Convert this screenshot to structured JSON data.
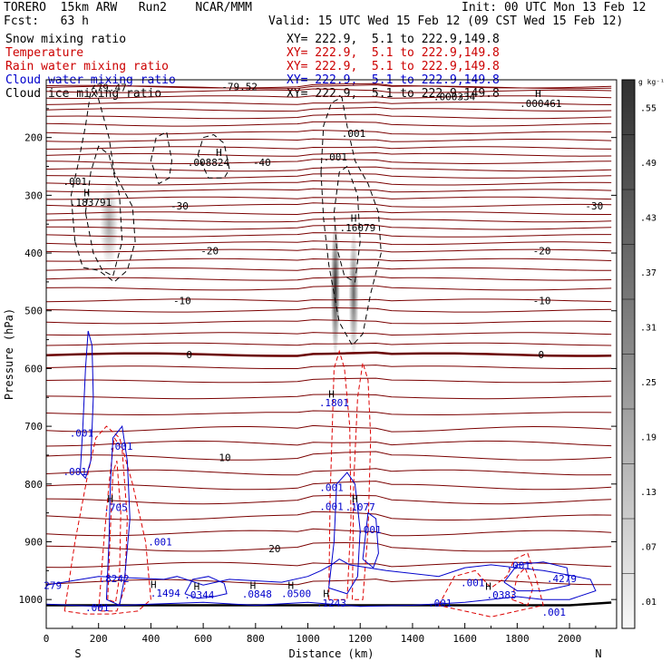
{
  "header": {
    "model": "TORERO  15km ARW   Run2    NCAR/MMM",
    "init": "Init: 00 UTC Mon 13 Feb 12",
    "fcst": "Fcst:   63 h",
    "valid": "Valid: 15 UTC Wed 15 Feb 12 (09 CST Wed 15 Feb 12)"
  },
  "legend": {
    "items": [
      {
        "label": "Snow mixing ratio",
        "xy": "XY= 222.9,  5.1 to 222.9,149.8",
        "color": "#000000"
      },
      {
        "label": "Temperature",
        "xy": "XY= 222.9,  5.1 to 222.9,149.8",
        "color": "#cc0000"
      },
      {
        "label": "Rain water mixing ratio",
        "xy": "XY= 222.9,  5.1 to 222.9,149.8",
        "color": "#cc0000"
      },
      {
        "label": "Cloud water mixing ratio",
        "xy": "XY= 222.9,  5.1 to 222.9,149.8",
        "color": "#0000cc"
      },
      {
        "label": "Cloud ice mixing ratio",
        "xy": "XY= 222.9,  5.1 to 222.9,149.8",
        "color": "#000000"
      }
    ]
  },
  "chart_data": {
    "type": "cross-section",
    "xlabel": "Distance (km)",
    "ylabel": "Pressure (hPa)",
    "xlim": [
      0,
      2180
    ],
    "ylim": [
      1050,
      100
    ],
    "x_ticks": [
      0,
      200,
      400,
      600,
      800,
      1000,
      1200,
      1400,
      1600,
      1800,
      2000
    ],
    "y_ticks": [
      200,
      300,
      400,
      500,
      600,
      700,
      800,
      900,
      1000
    ],
    "x_end_labels": {
      "left": "S",
      "right": "N"
    },
    "colorbar": {
      "unit": "g kg⁻¹",
      "labels": [
        ".55",
        ".49",
        ".43",
        ".37",
        ".31",
        ".25",
        ".19",
        ".13",
        ".07",
        ".01"
      ]
    },
    "temperature_contours": [
      {
        "value": -79.47,
        "label": "-79.47",
        "p": 113,
        "label_x": 170
      },
      {
        "value": -79.52,
        "label": "-79.52",
        "p": 112,
        "label_x": 670
      },
      {
        "value": -40,
        "label": "-40",
        "p": 243,
        "label_x": 790
      },
      {
        "value": -30,
        "label": "-30",
        "p": 318,
        "label_x": 475,
        "label_x2": 2060
      },
      {
        "value": -20,
        "label": "-20",
        "p": 396,
        "label_x": 590,
        "label_x2": 1860
      },
      {
        "value": -10,
        "label": "-10",
        "p": 482,
        "label_x": 485,
        "label_x2": 1860
      },
      {
        "value": 0,
        "label": "0",
        "p": 576,
        "label_x": 535,
        "label_x2": 1880
      },
      {
        "value": 10,
        "label": "10",
        "p": 754,
        "label_x": 660
      },
      {
        "value": 20,
        "label": "20",
        "p": 912,
        "label_x": 850
      }
    ],
    "annotations": [
      {
        "text": ".000334",
        "x": 1560,
        "p": 135
      },
      {
        "text": ".000461",
        "x": 1890,
        "p": 147
      },
      {
        "text": ".001",
        "x": 110,
        "p": 282
      },
      {
        "text": ".183791",
        "x": 170,
        "p": 318
      },
      {
        "text": ".008824",
        "x": 620,
        "p": 249
      },
      {
        "text": ".001",
        "x": 1175,
        "p": 199
      },
      {
        "text": ".001",
        "x": 1105,
        "p": 240
      },
      {
        "text": ".16079",
        "x": 1190,
        "p": 362
      },
      {
        "text": ".1801",
        "x": 1100,
        "p": 665
      },
      {
        "text": ".001",
        "x": 1090,
        "p": 812
      },
      {
        "text": ".001",
        "x": 1090,
        "p": 845
      },
      {
        "text": ".1077",
        "x": 1200,
        "p": 846
      },
      {
        "text": ".001",
        "x": 1235,
        "p": 885
      },
      {
        "text": ".001",
        "x": 135,
        "p": 718
      },
      {
        "text": ".001",
        "x": 285,
        "p": 741
      },
      {
        "text": ".001",
        "x": 110,
        "p": 785
      },
      {
        "text": ".705",
        "x": 265,
        "p": 847
      },
      {
        "text": ".001",
        "x": 435,
        "p": 906
      },
      {
        "text": ".8242",
        "x": 260,
        "p": 970
      },
      {
        "text": ".001",
        "x": 195,
        "p": 1020
      },
      {
        "text": ".1494",
        "x": 455,
        "p": 995
      },
      {
        "text": ".0344",
        "x": 585,
        "p": 998
      },
      {
        "text": ".0848",
        "x": 805,
        "p": 997
      },
      {
        "text": ".0500",
        "x": 955,
        "p": 996
      },
      {
        "text": ".1243",
        "x": 1090,
        "p": 1012
      },
      {
        "text": ".001",
        "x": 1505,
        "p": 1012
      },
      {
        "text": ".001",
        "x": 1630,
        "p": 977
      },
      {
        "text": ".0383",
        "x": 1740,
        "p": 998
      },
      {
        "text": ".001",
        "x": 1805,
        "p": 947
      },
      {
        "text": ".4279",
        "x": 1970,
        "p": 970
      },
      {
        "text": ".001",
        "x": 1940,
        "p": 1028
      },
      {
        "text": "279",
        "x": 25,
        "p": 982
      }
    ],
    "h_markers": [
      {
        "text": "H",
        "x": 1880,
        "p": 130
      },
      {
        "text": "H",
        "x": 660,
        "p": 232
      },
      {
        "text": "H",
        "x": 155,
        "p": 302
      },
      {
        "text": "H",
        "x": 1175,
        "p": 346
      },
      {
        "text": "H",
        "x": 1090,
        "p": 650
      },
      {
        "text": "H",
        "x": 245,
        "p": 832
      },
      {
        "text": "H",
        "x": 1180,
        "p": 832
      },
      {
        "text": "H",
        "x": 410,
        "p": 980
      },
      {
        "text": "H",
        "x": 575,
        "p": 983
      },
      {
        "text": "H",
        "x": 790,
        "p": 982
      },
      {
        "text": "H",
        "x": 935,
        "p": 982
      },
      {
        "text": "H",
        "x": 1070,
        "p": 996
      },
      {
        "text": "H",
        "x": 1690,
        "p": 983
      }
    ],
    "snow_shading": [
      {
        "name": "left-snow-core",
        "x": 240,
        "p": 350,
        "w": 70,
        "h": 150,
        "intensity": 0.35
      },
      {
        "name": "right-snow-core-1",
        "x": 1105,
        "p": 460,
        "w": 35,
        "h": 240,
        "intensity": 0.85
      },
      {
        "name": "right-snow-core-2",
        "x": 1175,
        "p": 470,
        "w": 38,
        "h": 220,
        "intensity": 0.6
      }
    ]
  }
}
